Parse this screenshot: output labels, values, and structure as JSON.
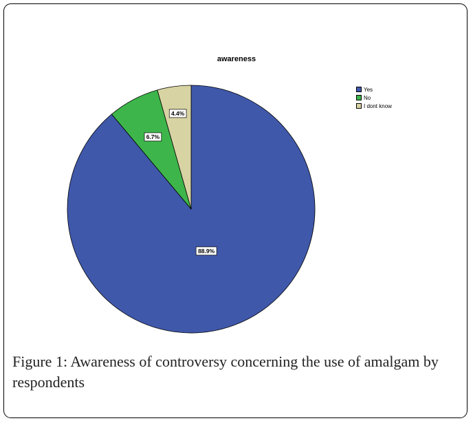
{
  "chart_data": {
    "type": "pie",
    "title": "awareness",
    "slices": [
      {
        "label": "Yes",
        "value": 88.9,
        "label_text": "88.9%",
        "color": "#3f58aa"
      },
      {
        "label": "No",
        "value": 6.7,
        "label_text": "6.7%",
        "color": "#3db54a"
      },
      {
        "label": "I dont know",
        "value": 4.4,
        "label_text": "4.4%",
        "color": "#d8d3a3"
      }
    ],
    "legend_position": "top-right"
  },
  "caption": {
    "prefix": "Figure 1:",
    "text": " Awareness of controversy concerning the use of amalgam by respondents"
  }
}
